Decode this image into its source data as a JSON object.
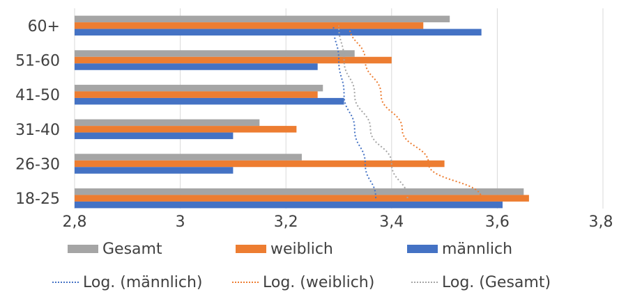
{
  "chart_data": {
    "type": "bar",
    "orientation": "horizontal",
    "categories": [
      "18-25",
      "26-30",
      "31-40",
      "41-50",
      "51-60",
      "60+"
    ],
    "series": [
      {
        "name": "Gesamt",
        "color": "#A5A5A5",
        "values": [
          3.65,
          3.23,
          3.15,
          3.27,
          3.33,
          3.51
        ]
      },
      {
        "name": "weiblich",
        "color": "#ED7D31",
        "values": [
          3.66,
          3.5,
          3.22,
          3.26,
          3.4,
          3.46
        ]
      },
      {
        "name": "männlich",
        "color": "#4472C4",
        "values": [
          3.61,
          3.1,
          3.1,
          3.31,
          3.26,
          3.57
        ]
      }
    ],
    "trendlines": [
      {
        "name": "Log. (männlich)",
        "type": "logarithmic",
        "color": "#4472C4",
        "values": [
          3.37,
          3.35,
          3.33,
          3.31,
          3.3,
          3.29
        ]
      },
      {
        "name": "Log. (weiblich)",
        "type": "logarithmic",
        "color": "#ED7D31",
        "values": [
          3.57,
          3.47,
          3.42,
          3.38,
          3.35,
          3.32
        ]
      },
      {
        "name": "Log. (Gesamt)",
        "type": "logarithmic",
        "color": "#A5A5A5",
        "values": [
          3.43,
          3.4,
          3.36,
          3.33,
          3.31,
          3.3
        ]
      }
    ],
    "xlim": [
      2.8,
      3.8
    ],
    "xticks": [
      "2,8",
      "3",
      "3,2",
      "3,4",
      "3,6",
      "3,8"
    ],
    "grid": true,
    "legend_position": "bottom",
    "title": "",
    "xlabel": "",
    "ylabel": ""
  },
  "legend": {
    "gesamt": "Gesamt",
    "weiblich": "weiblich",
    "maennlich": "männlich",
    "log_maennlich": "Log. (männlich)",
    "log_weiblich": "Log. (weiblich)",
    "log_gesamt": "Log. (Gesamt)"
  }
}
